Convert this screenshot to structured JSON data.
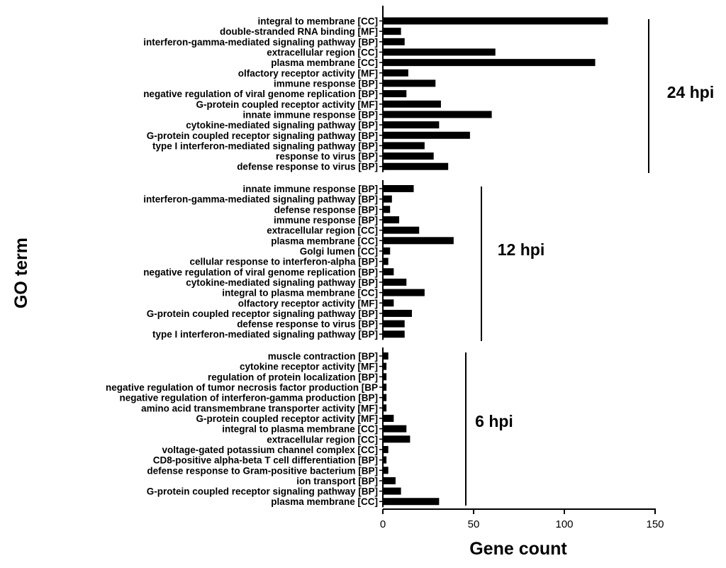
{
  "chart_data": {
    "type": "bar",
    "orientation": "horizontal",
    "xlabel": "Gene count",
    "ylabel": "GO term",
    "xlim": [
      0,
      150
    ],
    "xticks": [
      0,
      50,
      100,
      150
    ],
    "grid": false,
    "bar_color": "#000000",
    "groups": [
      {
        "label": "24 hpi",
        "categories": [
          "integral to membrane [CC]",
          "double-stranded RNA binding [MF]",
          "interferon-gamma-mediated signaling pathway [BP]",
          "extracellular region [CC]",
          "plasma membrane [CC]",
          "olfactory receptor activity [MF]",
          "immune response [BP]",
          "negative regulation of viral genome replication [BP]",
          "G-protein coupled receptor activity [MF]",
          "innate immune response [BP]",
          "cytokine-mediated signaling pathway [BP]",
          "G-protein coupled receptor signaling pathway [BP]",
          "type I interferon-mediated signaling pathway [BP]",
          "response to virus [BP]",
          "defense response to virus [BP]"
        ],
        "values": [
          124,
          10,
          12,
          62,
          117,
          14,
          29,
          13,
          32,
          60,
          31,
          48,
          23,
          28,
          36
        ]
      },
      {
        "label": "12 hpi",
        "categories": [
          "innate immune response [BP]",
          "interferon-gamma-mediated signaling pathway [BP]",
          "defense response [BP]",
          "immune response [BP]",
          "extracellular region [CC]",
          "plasma membrane [CC]",
          "Golgi lumen [CC]",
          "cellular response to interferon-alpha [BP]",
          "negative regulation of viral genome replication [BP]",
          "cytokine-mediated signaling pathway [BP]",
          "integral to plasma membrane [CC]",
          "olfactory receptor activity [MF]",
          "G-protein coupled receptor signaling pathway [BP]",
          "defense response to virus [BP]",
          "type I interferon-mediated signaling pathway [BP]"
        ],
        "values": [
          17,
          5,
          4,
          9,
          20,
          39,
          4,
          3,
          6,
          13,
          23,
          6,
          16,
          12,
          12
        ]
      },
      {
        "label": "6 hpi",
        "categories": [
          "muscle contraction [BP]",
          "cytokine receptor activity [MF]",
          "regulation of protein localization [BP]",
          "negative regulation of tumor necrosis factor production [BP",
          "negative regulation of interferon-gamma production [BP]",
          "amino acid transmembrane transporter activity [MF]",
          "G-protein coupled receptor activity [MF]",
          "integral to plasma membrane [CC]",
          "extracellular region [CC]",
          "voltage-gated potassium channel complex [CC]",
          "CD8-positive alpha-beta T cell differentiation [BP]",
          "defense response to Gram-positive bacterium [BP]",
          "ion transport [BP]",
          "G-protein coupled receptor signaling pathway [BP]",
          "plasma membrane [CC]"
        ],
        "values": [
          3,
          2,
          2,
          2,
          2,
          2,
          6,
          13,
          15,
          3,
          2,
          3,
          7,
          10,
          31
        ]
      }
    ]
  }
}
